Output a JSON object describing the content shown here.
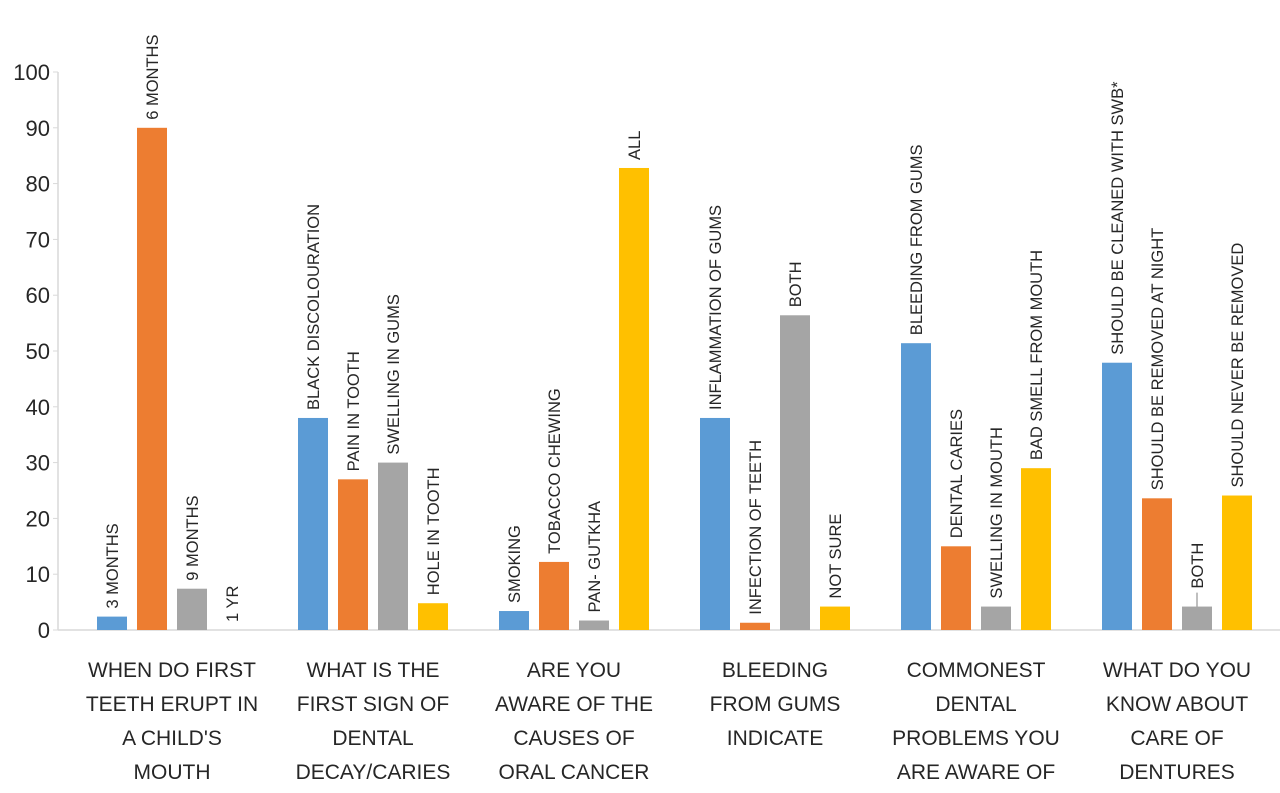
{
  "chart_data": {
    "type": "bar",
    "title": "",
    "xlabel": "",
    "ylabel": "",
    "ylim": [
      0,
      100
    ],
    "yticks": [
      0,
      10,
      20,
      30,
      40,
      50,
      60,
      70,
      80,
      90,
      100
    ],
    "grid": false,
    "legend": "none",
    "series_colors": [
      "#5B9BD5",
      "#ED7D31",
      "#A5A5A5",
      "#FFC000"
    ],
    "categories": [
      {
        "label_lines": [
          "WHEN DO FIRST",
          "TEETH ERUPT IN",
          "A CHILD'S",
          "MOUTH"
        ],
        "bars": [
          {
            "label": "3 MONTHS",
            "value": 2.4
          },
          {
            "label": "6 MONTHS",
            "value": 90
          },
          {
            "label": "9 MONTHS",
            "value": 7.4
          },
          {
            "label": "1 YR",
            "value": 0
          }
        ]
      },
      {
        "label_lines": [
          "WHAT IS THE",
          "FIRST SIGN OF",
          "DENTAL",
          "DECAY/CARIES"
        ],
        "bars": [
          {
            "label": "BLACK DISCOLOURATION",
            "value": 38
          },
          {
            "label": "PAIN IN TOOTH",
            "value": 27
          },
          {
            "label": "SWELLING IN GUMS",
            "value": 30
          },
          {
            "label": "HOLE IN TOOTH",
            "value": 4.8
          }
        ]
      },
      {
        "label_lines": [
          "ARE YOU",
          "AWARE OF THE",
          "CAUSES OF",
          "ORAL CANCER"
        ],
        "bars": [
          {
            "label": "SMOKING",
            "value": 3.4
          },
          {
            "label": "TOBACCO CHEWING",
            "value": 12.2
          },
          {
            "label": "PAN- GUTKHA",
            "value": 1.7
          },
          {
            "label": "ALL",
            "value": 82.8
          }
        ]
      },
      {
        "label_lines": [
          "BLEEDING",
          "FROM GUMS",
          "INDICATE"
        ],
        "bars": [
          {
            "label": "INFLAMMATION OF GUMS",
            "value": 38
          },
          {
            "label": "INFECTION OF TEETH",
            "value": 1.3
          },
          {
            "label": "BOTH",
            "value": 56.4
          },
          {
            "label": "NOT SURE",
            "value": 4.2
          }
        ]
      },
      {
        "label_lines": [
          "COMMONEST",
          "DENTAL",
          "PROBLEMS YOU",
          "ARE AWARE OF"
        ],
        "bars": [
          {
            "label": "BLEEDING FROM GUMS",
            "value": 51.4
          },
          {
            "label": "DENTAL CARIES",
            "value": 15
          },
          {
            "label": "SWELLING IN MOUTH",
            "value": 4.2
          },
          {
            "label": "BAD SMELL FROM MOUTH",
            "value": 29
          }
        ]
      },
      {
        "label_lines": [
          "WHAT DO YOU",
          "KNOW ABOUT",
          "CARE OF",
          "DENTURES"
        ],
        "bars": [
          {
            "label": "SHOULD BE CLEANED WITH SWB*",
            "value": 47.9
          },
          {
            "label": "SHOULD BE REMOVED AT NIGHT",
            "value": 23.6
          },
          {
            "label": "BOTH",
            "value": 4.2
          },
          {
            "label": "SHOULD NEVER BE REMOVED",
            "value": 24.1
          }
        ]
      }
    ]
  }
}
